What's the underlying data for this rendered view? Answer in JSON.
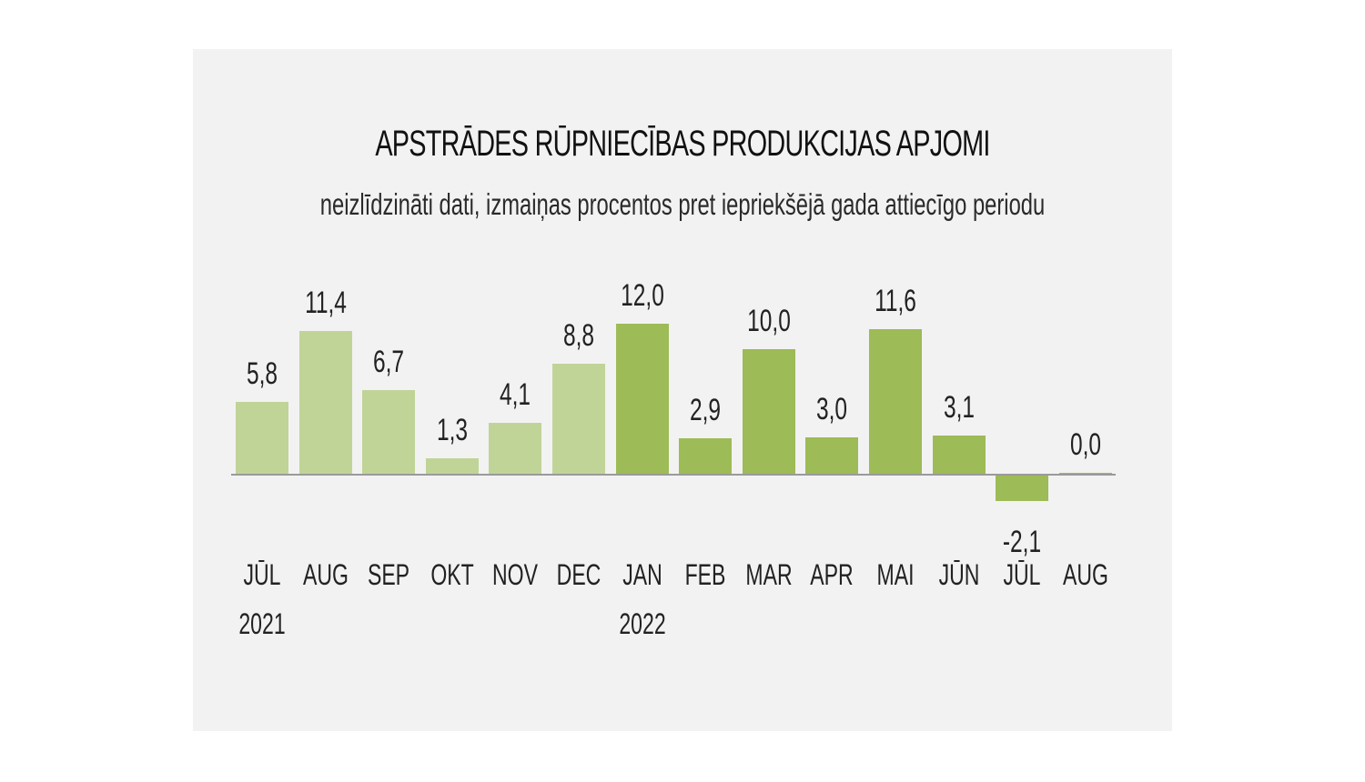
{
  "chart_data": {
    "type": "bar",
    "title": "APSTRĀDES RŪPNIECĪBAS PRODUKCIJAS APJOMI",
    "subtitle": "neizlīdzināti dati, izmaiņas procentos pret iepriekšējā gada attiecīgo periodu",
    "xlabel": "",
    "ylabel": "",
    "categories": [
      "JŪL",
      "AUG",
      "SEP",
      "OKT",
      "NOV",
      "DEC",
      "JAN",
      "FEB",
      "MAR",
      "APR",
      "MAI",
      "JŪN",
      "JŪL",
      "AUG"
    ],
    "year_labels": [
      {
        "index": 0,
        "label": "2021"
      },
      {
        "index": 6,
        "label": "2022"
      }
    ],
    "values": [
      5.8,
      11.4,
      6.7,
      1.3,
      4.1,
      8.8,
      12.0,
      2.9,
      10.0,
      3.0,
      11.6,
      3.1,
      -2.1,
      0.0
    ],
    "value_labels": [
      "5,8",
      "11,4",
      "6,7",
      "1,3",
      "4,1",
      "8,8",
      "12,0",
      "2,9",
      "10,0",
      "3,0",
      "11,6",
      "3,1",
      "-2,1",
      "0,0"
    ],
    "series_colors": {
      "2021": "#c0d498",
      "2022": "#9dbb57"
    },
    "grid": false,
    "legend": "none",
    "ylim": [
      -2.1,
      12.0
    ]
  },
  "colors": {
    "panel_bg": "#f2f2f2",
    "axis": "#9a9a9a",
    "bar_2021": "#c0d498",
    "bar_2022": "#9dbb57"
  }
}
